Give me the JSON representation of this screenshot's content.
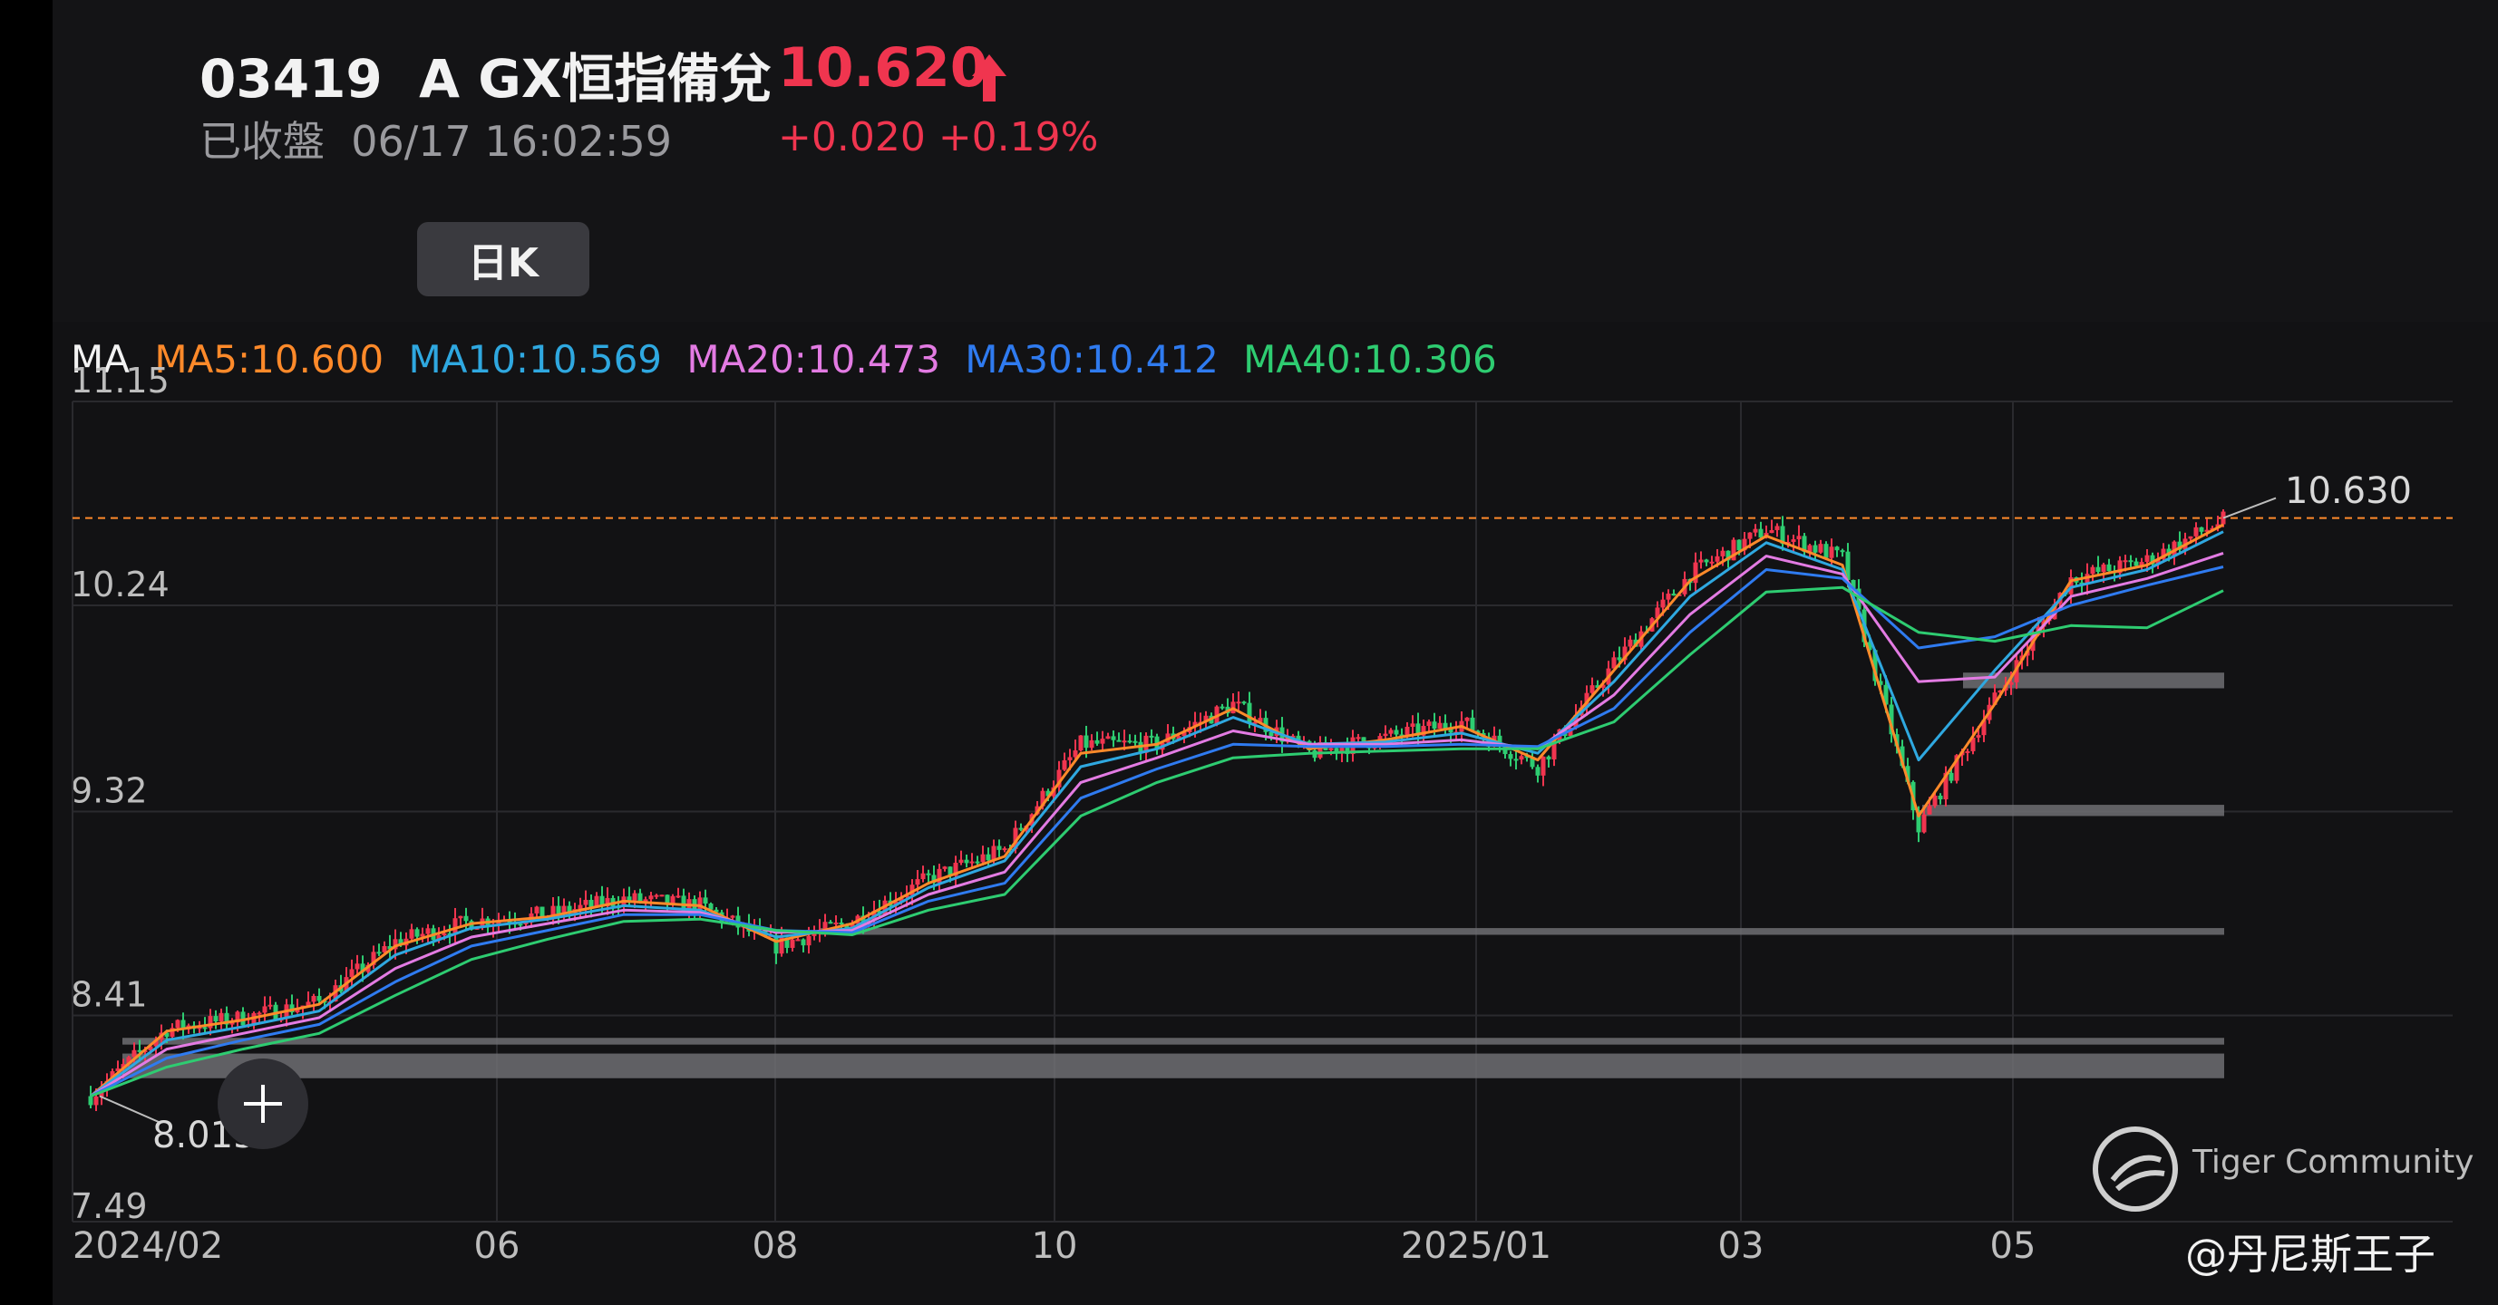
{
  "header": {
    "code_name": "03419  A GX恒指備兌",
    "price": "10.620",
    "status_time": "已收盤  06/17 16:02:59",
    "change": "+0.020 +0.19%",
    "period_tab": "日K"
  },
  "ma_legend": {
    "label": "MA",
    "items": [
      {
        "text": "MA5:10.600",
        "color": "#ff8a2a"
      },
      {
        "text": "MA10:10.569",
        "color": "#2fa8e0"
      },
      {
        "text": "MA20:10.473",
        "color": "#e37be3"
      },
      {
        "text": "MA30:10.412",
        "color": "#2f7bf0"
      },
      {
        "text": "MA40:10.306",
        "color": "#2ecc71"
      }
    ]
  },
  "colors": {
    "up": "#f0354f",
    "down": "#2ecc71",
    "grid": "#2a2a2e",
    "zone": "#6e6e72"
  },
  "chart_data": {
    "type": "candlestick",
    "ylim": [
      7.49,
      11.15
    ],
    "y_ticks": [
      "11.15",
      "10.24",
      "9.32",
      "8.41",
      "7.49"
    ],
    "x_ticks": [
      "2024/02",
      "06",
      "08",
      "10",
      "2025/01",
      "03",
      "05"
    ],
    "high_marker": "10.630",
    "low_marker": "8.015",
    "series": [
      {
        "name": "MA5",
        "values": [
          8.05,
          8.34,
          8.39,
          8.46,
          8.72,
          8.82,
          8.85,
          8.92,
          8.9,
          8.74,
          8.82,
          9.0,
          9.12,
          9.58,
          9.62,
          9.78,
          9.6,
          9.64,
          9.7,
          9.55,
          9.95,
          10.35,
          10.55,
          10.42,
          9.3,
          9.8,
          10.35,
          10.42,
          10.6
        ]
      },
      {
        "name": "MA10",
        "values": [
          8.05,
          8.3,
          8.36,
          8.43,
          8.68,
          8.8,
          8.84,
          8.9,
          8.88,
          8.76,
          8.8,
          8.98,
          9.1,
          9.52,
          9.6,
          9.74,
          9.62,
          9.63,
          9.67,
          9.58,
          9.9,
          10.28,
          10.52,
          10.4,
          9.55,
          9.95,
          10.32,
          10.4,
          10.569
        ]
      },
      {
        "name": "MA20",
        "values": [
          8.05,
          8.26,
          8.33,
          8.4,
          8.62,
          8.76,
          8.82,
          8.88,
          8.87,
          8.78,
          8.79,
          8.95,
          9.05,
          9.45,
          9.56,
          9.68,
          9.62,
          9.62,
          9.64,
          9.6,
          9.84,
          10.2,
          10.46,
          10.38,
          9.9,
          9.92,
          10.28,
          10.36,
          10.473
        ]
      },
      {
        "name": "MA30",
        "values": [
          8.05,
          8.22,
          8.3,
          8.37,
          8.56,
          8.72,
          8.79,
          8.86,
          8.86,
          8.79,
          8.78,
          8.92,
          9.0,
          9.38,
          9.51,
          9.62,
          9.61,
          9.61,
          9.62,
          9.61,
          9.78,
          10.12,
          10.4,
          10.36,
          10.05,
          10.1,
          10.24,
          10.33,
          10.412
        ]
      },
      {
        "name": "MA40",
        "values": [
          8.05,
          8.18,
          8.26,
          8.33,
          8.5,
          8.66,
          8.75,
          8.83,
          8.84,
          8.79,
          8.77,
          8.88,
          8.95,
          9.3,
          9.45,
          9.56,
          9.58,
          9.59,
          9.6,
          9.6,
          9.72,
          10.02,
          10.3,
          10.32,
          10.12,
          10.08,
          10.15,
          10.14,
          10.306
        ]
      }
    ],
    "price_path": [
      8.05,
      8.35,
      8.4,
      8.47,
      8.74,
      8.83,
      8.86,
      8.93,
      8.9,
      8.72,
      8.83,
      9.02,
      9.15,
      9.62,
      9.62,
      9.8,
      9.58,
      9.65,
      9.72,
      9.52,
      9.98,
      10.38,
      10.58,
      10.45,
      9.25,
      9.82,
      10.36,
      10.44,
      10.62
    ],
    "support_zones": [
      {
        "y": [
          9.87,
          9.94
        ]
      },
      {
        "y": [
          9.3,
          9.35
        ]
      },
      {
        "y": [
          8.77,
          8.8
        ]
      },
      {
        "y": [
          8.28,
          8.31
        ]
      },
      {
        "y": [
          8.13,
          8.24
        ]
      }
    ],
    "resistance_line": 10.63
  },
  "watermark": {
    "text": "Tiger Community"
  },
  "author": "@丹尼斯王子"
}
